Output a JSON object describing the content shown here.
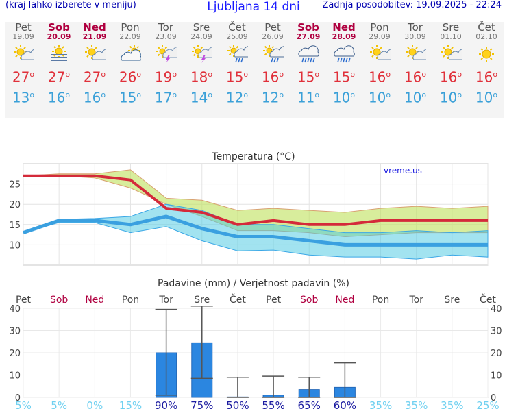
{
  "header": {
    "menu_hint": "(kraj lahko izberete v meniju)",
    "title": "Ljubljana 14 dni",
    "updated": "Zadnja posodobitev: 19.09.2025 - 22:24"
  },
  "colors": {
    "max": "#e0303a",
    "min": "#3aa0d8",
    "weekend": "#b00040",
    "bar": "#2b86e0"
  },
  "days": [
    {
      "name": "Pet",
      "date": "19.09",
      "weekend": false,
      "icon": "sun-cloud-icon",
      "max": "27",
      "min": "13"
    },
    {
      "name": "Sob",
      "date": "20.09",
      "weekend": true,
      "icon": "fog-sun-icon",
      "max": "27",
      "min": "16"
    },
    {
      "name": "Ned",
      "date": "21.09",
      "weekend": true,
      "icon": "sun-cloud-icon",
      "max": "27",
      "min": "16"
    },
    {
      "name": "Pon",
      "date": "22.09",
      "weekend": false,
      "icon": "cloud-sun-icon",
      "max": "26",
      "min": "15"
    },
    {
      "name": "Tor",
      "date": "23.09",
      "weekend": false,
      "icon": "thunderstorm-sun-icon",
      "max": "19",
      "min": "17"
    },
    {
      "name": "Sre",
      "date": "24.09",
      "weekend": false,
      "icon": "thunderstorm-sun-icon",
      "max": "18",
      "min": "14"
    },
    {
      "name": "Čet",
      "date": "25.09",
      "weekend": false,
      "icon": "rain-sun-icon",
      "max": "15",
      "min": "12"
    },
    {
      "name": "Pet",
      "date": "26.09",
      "weekend": false,
      "icon": "rain-sun-icon",
      "max": "16",
      "min": "12"
    },
    {
      "name": "Sob",
      "date": "27.09",
      "weekend": true,
      "icon": "rain-cloud-icon",
      "max": "15",
      "min": "11"
    },
    {
      "name": "Ned",
      "date": "28.09",
      "weekend": true,
      "icon": "rain-cloud-icon",
      "max": "15",
      "min": "10"
    },
    {
      "name": "Pon",
      "date": "29.09",
      "weekend": false,
      "icon": "sun-cloud-icon",
      "max": "16",
      "min": "10"
    },
    {
      "name": "Tor",
      "date": "30.09",
      "weekend": false,
      "icon": "sun-cloud-icon",
      "max": "16",
      "min": "10"
    },
    {
      "name": "Sre",
      "date": "01.10",
      "weekend": false,
      "icon": "sun-cloud-icon",
      "max": "16",
      "min": "10"
    },
    {
      "name": "Čet",
      "date": "02.10",
      "weekend": false,
      "icon": "sun-icon",
      "max": "16",
      "min": "10"
    }
  ],
  "chart_data": [
    {
      "type": "line",
      "title": "Temperatura (°C)",
      "watermark": "vreme.us",
      "ylim": [
        5,
        30
      ],
      "yticks": [
        10,
        15,
        20,
        25
      ],
      "categories": [
        "Pet",
        "Sob",
        "Ned",
        "Pon",
        "Tor",
        "Sre",
        "Čet",
        "Pet",
        "Sob",
        "Ned",
        "Pon",
        "Tor",
        "Sre",
        "Čet"
      ],
      "series": [
        {
          "name": "max",
          "values": [
            27,
            27,
            27,
            26,
            19,
            18,
            15,
            16,
            15,
            15,
            16,
            16,
            16,
            16
          ]
        },
        {
          "name": "max_low",
          "values": [
            27,
            27,
            26.5,
            24,
            20,
            17,
            13.5,
            13.5,
            13,
            12,
            12.5,
            13,
            13,
            13
          ]
        },
        {
          "name": "max_high",
          "values": [
            27,
            27.5,
            27.5,
            28.5,
            21.5,
            21,
            18.5,
            19,
            18.5,
            18,
            19,
            19.5,
            19,
            19.5
          ]
        },
        {
          "name": "min",
          "values": [
            13,
            16,
            16,
            15,
            17,
            14,
            12,
            12,
            11,
            10,
            10,
            10,
            10,
            10
          ]
        },
        {
          "name": "min_low",
          "values": [
            13,
            15.5,
            15.5,
            13,
            14.5,
            11,
            8.5,
            8.7,
            7.5,
            7,
            7,
            6.5,
            7.5,
            7
          ]
        },
        {
          "name": "min_high",
          "values": [
            13,
            16.3,
            16.5,
            17,
            20,
            18.5,
            15,
            15,
            14,
            13,
            13,
            13.5,
            13,
            13.5
          ]
        }
      ]
    },
    {
      "type": "bar",
      "title": "Padavine (mm) / Verjetnost padavin (%)",
      "ylim": [
        0,
        40
      ],
      "yticks": [
        0,
        10,
        20,
        30,
        40
      ],
      "categories": [
        "Pet",
        "Sob",
        "Ned",
        "Pon",
        "Tor",
        "Sre",
        "Čet",
        "Pet",
        "Sob",
        "Ned",
        "Pon",
        "Tor",
        "Sre",
        "Čet"
      ],
      "weekend": [
        false,
        true,
        true,
        false,
        false,
        false,
        false,
        false,
        true,
        true,
        false,
        false,
        false,
        false
      ],
      "values": [
        0,
        0,
        0,
        0,
        20,
        24.5,
        0.2,
        1,
        3.5,
        4.5,
        0,
        0,
        0,
        0
      ],
      "error_low": [
        null,
        null,
        null,
        null,
        1,
        8.5,
        0,
        0,
        0,
        0,
        null,
        null,
        null,
        null
      ],
      "error_high": [
        null,
        null,
        null,
        null,
        39.5,
        41,
        9,
        9.5,
        9,
        15.5,
        null,
        null,
        null,
        null
      ],
      "probability": [
        "5%",
        "5%",
        "0%",
        "15%",
        "90%",
        "75%",
        "50%",
        "55%",
        "65%",
        "60%",
        "35%",
        "35%",
        "35%",
        "25%"
      ],
      "probability_dark": [
        false,
        false,
        false,
        false,
        true,
        true,
        true,
        true,
        true,
        true,
        false,
        false,
        false,
        false
      ]
    }
  ]
}
